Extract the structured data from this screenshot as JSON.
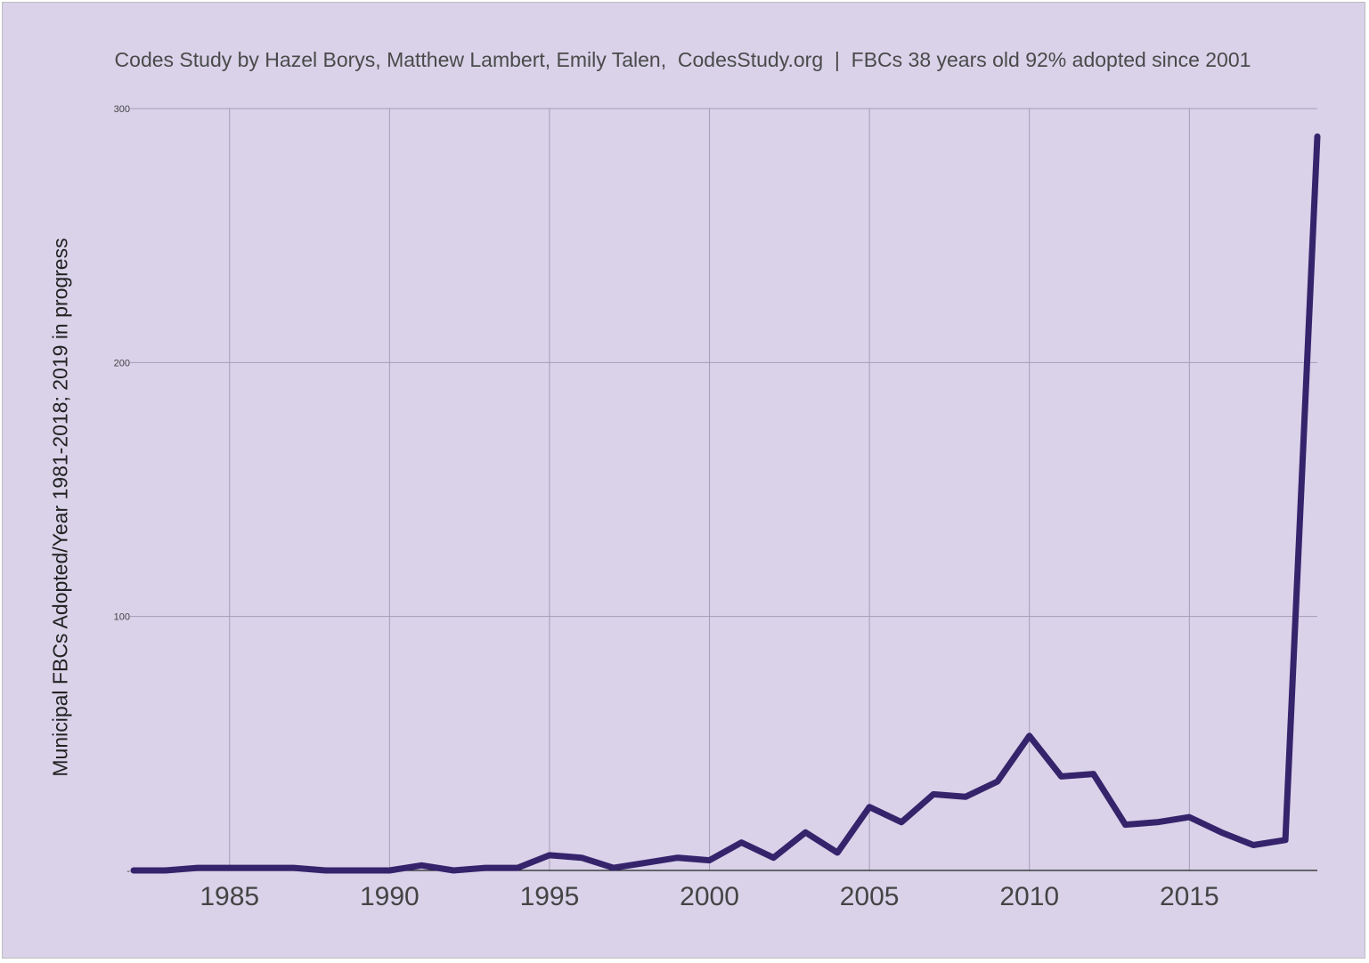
{
  "chart_data": {
    "type": "line",
    "title": "Codes Study by Hazel Borys, Matthew Lambert, Emily Talen,  CodesStudy.org  |  FBCs 38 years old 92% adopted since 2001",
    "xlabel": "",
    "ylabel": "Municipal FBCs Adopted/Year 1981-2018; 2019 in progress",
    "xlim": [
      1982,
      2019
    ],
    "ylim": [
      0,
      300
    ],
    "x_ticks": [
      1985,
      1990,
      1995,
      2000,
      2005,
      2010,
      2015
    ],
    "y_ticks": [
      0,
      100,
      200,
      300
    ],
    "y_tick_labels": [
      "-",
      "100",
      "200",
      "300"
    ],
    "grid": true,
    "legend": "none",
    "line_color": "#35236b",
    "background_color": "#d9d2e9",
    "grid_color": "#a59db7",
    "series": [
      {
        "x": [
          1982,
          1983,
          1984,
          1985,
          1986,
          1987,
          1988,
          1989,
          1990,
          1991,
          1992,
          1993,
          1994,
          1995,
          1996,
          1997,
          1998,
          1999,
          2000,
          2001,
          2002,
          2003,
          2004,
          2005,
          2006,
          2007,
          2008,
          2009,
          2010,
          2011,
          2012,
          2013,
          2014,
          2015,
          2016,
          2017,
          2018,
          2019
        ],
        "values": [
          0,
          0,
          1,
          1,
          1,
          1,
          0,
          0,
          0,
          2,
          0,
          1,
          1,
          6,
          5,
          1,
          3,
          5,
          4,
          11,
          5,
          15,
          7,
          25,
          19,
          30,
          29,
          35,
          53,
          37,
          38,
          18,
          19,
          21,
          15,
          10,
          12,
          289
        ]
      }
    ]
  }
}
